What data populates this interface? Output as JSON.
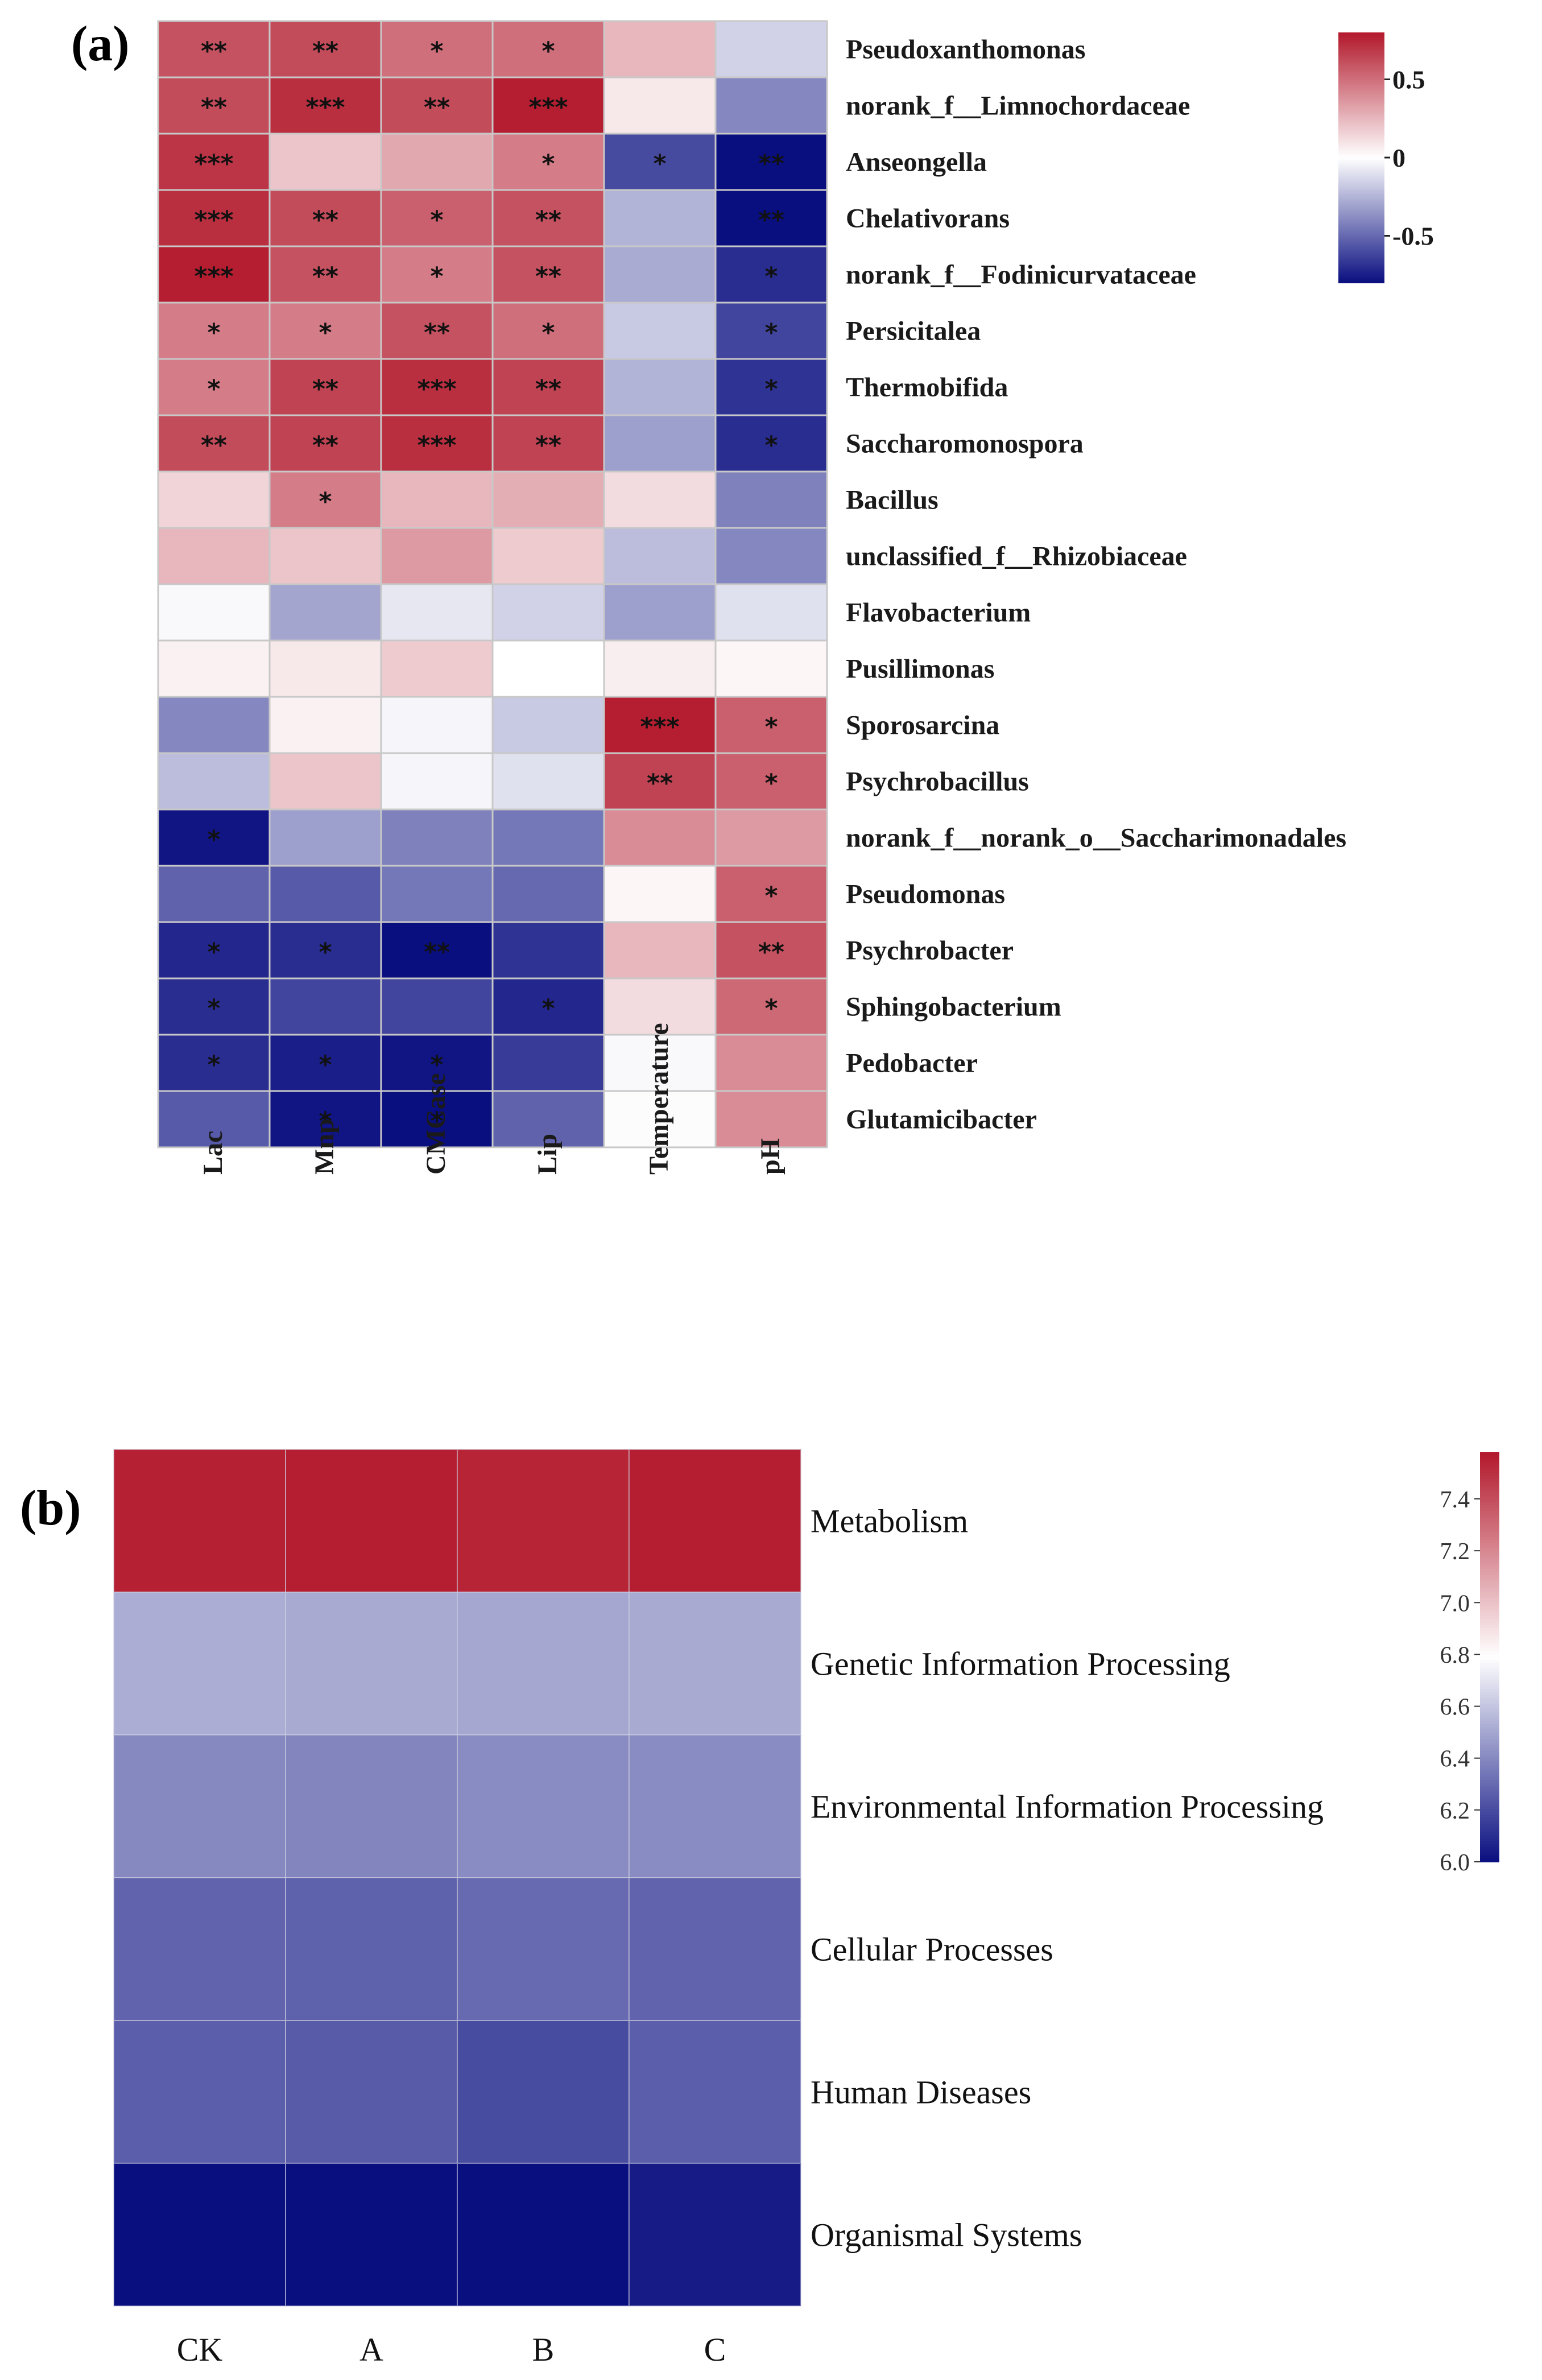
{
  "chart_data": [
    {
      "panel": "(a)",
      "type": "heatmap",
      "columns": [
        "Lac",
        "Mnp",
        "CMCase",
        "Lip",
        "Temperature",
        "pH"
      ],
      "rows": [
        "Pseudoxanthomonas",
        "norank_f__Limnochordaceae",
        "Anseongella",
        "Chelativorans",
        "norank_f__Fodinicurvataceae",
        "Persicitalea",
        "Thermobifida",
        "Saccharomonospora",
        "Bacillus",
        "unclassified_f__Rhizobiaceae",
        "Flavobacterium",
        "Pusillimonas",
        "Sporosarcina",
        "Psychrobacillus",
        "norank_f__norank_o__Saccharimonadales",
        "Pseudomonas",
        "Psychrobacter",
        "Sphingobacterium",
        "Pedobacter",
        "Glutamicibacter"
      ],
      "values": [
        [
          0.6,
          0.62,
          0.5,
          0.5,
          0.25,
          -0.15
        ],
        [
          0.62,
          0.72,
          0.62,
          0.78,
          0.08,
          -0.4
        ],
        [
          0.7,
          0.2,
          0.3,
          0.45,
          -0.6,
          -0.82
        ],
        [
          0.72,
          0.62,
          0.55,
          0.6,
          -0.25,
          -0.88
        ],
        [
          0.78,
          0.6,
          0.45,
          0.6,
          -0.28,
          -0.7
        ],
        [
          0.45,
          0.45,
          0.6,
          0.5,
          -0.18,
          -0.62
        ],
        [
          0.45,
          0.65,
          0.72,
          0.65,
          -0.25,
          -0.68
        ],
        [
          0.62,
          0.65,
          0.72,
          0.65,
          -0.32,
          -0.7
        ],
        [
          0.15,
          0.45,
          0.25,
          0.28,
          0.12,
          -0.42
        ],
        [
          0.25,
          0.2,
          0.35,
          0.18,
          -0.22,
          -0.4
        ],
        [
          -0.02,
          -0.3,
          -0.08,
          -0.15,
          -0.32,
          -0.1
        ],
        [
          0.05,
          0.08,
          0.18,
          0.0,
          0.06,
          0.03
        ],
        [
          -0.4,
          0.05,
          -0.03,
          -0.18,
          0.78,
          0.55
        ],
        [
          -0.22,
          0.2,
          -0.03,
          -0.1,
          0.65,
          0.55
        ],
        [
          -0.78,
          -0.32,
          -0.42,
          -0.45,
          0.4,
          0.35
        ],
        [
          -0.52,
          -0.55,
          -0.45,
          -0.5,
          0.03,
          0.55
        ],
        [
          -0.72,
          -0.7,
          -0.9,
          -0.68,
          0.25,
          0.6
        ],
        [
          -0.7,
          -0.62,
          -0.62,
          -0.72,
          0.12,
          0.52
        ],
        [
          -0.7,
          -0.75,
          -0.78,
          -0.65,
          -0.02,
          0.4
        ],
        [
          -0.55,
          -0.78,
          -0.82,
          -0.52,
          -0.01,
          0.4
        ]
      ],
      "significance": [
        [
          "**",
          "**",
          "*",
          "*",
          "",
          ""
        ],
        [
          "**",
          "***",
          "**",
          "***",
          "",
          ""
        ],
        [
          "***",
          "",
          "",
          "*",
          "*",
          "**"
        ],
        [
          "***",
          "**",
          "*",
          "**",
          "",
          "**"
        ],
        [
          "***",
          "**",
          "*",
          "**",
          "",
          "*"
        ],
        [
          "*",
          "*",
          "**",
          "*",
          "",
          "*"
        ],
        [
          "*",
          "**",
          "***",
          "**",
          "",
          "*"
        ],
        [
          "**",
          "**",
          "***",
          "**",
          "",
          "*"
        ],
        [
          "",
          "*",
          "",
          "",
          "",
          ""
        ],
        [
          "",
          "",
          "",
          "",
          "",
          ""
        ],
        [
          "",
          "",
          "",
          "",
          "",
          ""
        ],
        [
          "",
          "",
          "",
          "",
          "",
          ""
        ],
        [
          "",
          "",
          "",
          "",
          "***",
          "*"
        ],
        [
          "",
          "",
          "",
          "",
          "**",
          "*"
        ],
        [
          "*",
          "",
          "",
          "",
          "",
          ""
        ],
        [
          "",
          "",
          "",
          "",
          "",
          "*"
        ],
        [
          "*",
          "*",
          "**",
          "",
          "",
          "**"
        ],
        [
          "*",
          "",
          "",
          "*",
          "",
          "*"
        ],
        [
          "*",
          "*",
          "*",
          "",
          "",
          ""
        ],
        [
          "",
          "*",
          "*",
          "",
          "",
          ""
        ]
      ],
      "colorbar": {
        "range": [
          -0.8,
          0.8
        ],
        "ticks": [
          0.5,
          0,
          -0.5
        ],
        "tick_labels": [
          "0.5",
          "0",
          "-0.5"
        ]
      }
    },
    {
      "panel": "(b)",
      "type": "heatmap",
      "columns": [
        "CK",
        "A",
        "B",
        "C"
      ],
      "rows": [
        "Metabolism",
        "Genetic Information Processing",
        "Environmental Information Processing",
        "Cellular Processes",
        "Human Diseases",
        "Organismal Systems"
      ],
      "values": [
        [
          7.55,
          7.56,
          7.54,
          7.56
        ],
        [
          6.52,
          6.51,
          6.5,
          6.51
        ],
        [
          6.4,
          6.39,
          6.41,
          6.41
        ],
        [
          6.28,
          6.27,
          6.3,
          6.28
        ],
        [
          6.26,
          6.25,
          6.2,
          6.26
        ],
        [
          6.0,
          6.0,
          5.99,
          6.04
        ]
      ],
      "colorbar": {
        "range": [
          6.0,
          7.58
        ],
        "ticks": [
          7.4,
          7.2,
          7.0,
          6.8,
          6.6,
          6.4,
          6.2,
          6.0
        ],
        "tick_labels": [
          "7.4",
          "7.2",
          "7.0",
          "6.8",
          "6.6",
          "6.4",
          "6.2",
          "6.0"
        ]
      }
    }
  ],
  "colors": {
    "low": "#0a0f80",
    "mid": "#ffffff",
    "high": "#b2182b",
    "grid_a": "#c8c8c8",
    "grid_b": "#d0d0e0"
  }
}
